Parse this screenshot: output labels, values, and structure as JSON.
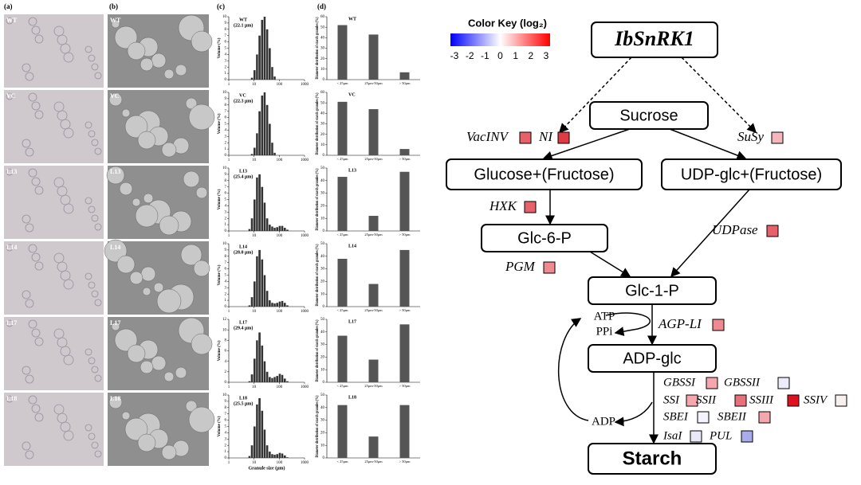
{
  "panel_labels": [
    "(a)",
    "(b)",
    "(c)",
    "(d)"
  ],
  "micrographs": {
    "rows": [
      "WT",
      "VC",
      "L13",
      "L14",
      "L17",
      "L18"
    ]
  },
  "chart_data": [
    {
      "type": "histogram",
      "title": "WT",
      "annotation": "(22.1 μm)",
      "ylabel": "Volume (%)",
      "xscale": "log",
      "xlim": [
        1,
        1000
      ],
      "xticks": [
        1,
        10,
        100,
        1000
      ],
      "ylim": [
        0,
        10
      ],
      "yticks": [
        0,
        1,
        2,
        3,
        4,
        5,
        6,
        7,
        8,
        9,
        10
      ],
      "color": "#333333",
      "bins": [
        3,
        3.8,
        4.8,
        6,
        7.5,
        9.5,
        12,
        15,
        19,
        24,
        30,
        38,
        48,
        60,
        75,
        95,
        120,
        150,
        190,
        240,
        300
      ],
      "values": [
        0,
        0,
        0,
        0,
        0.3,
        1.5,
        4,
        7,
        9.5,
        10,
        8,
        5,
        2,
        0.5,
        0,
        0,
        0,
        0,
        0,
        0
      ]
    },
    {
      "type": "histogram",
      "title": "VC",
      "annotation": "(22.3 μm)",
      "ylabel": "Volume (%)",
      "xscale": "log",
      "xlim": [
        1,
        1000
      ],
      "xticks": [
        1,
        10,
        100,
        1000
      ],
      "ylim": [
        0,
        10
      ],
      "yticks": [
        0,
        1,
        2,
        3,
        4,
        5,
        6,
        7,
        8,
        9,
        10
      ],
      "color": "#333333",
      "bins": [
        3,
        3.8,
        4.8,
        6,
        7.5,
        9.5,
        12,
        15,
        19,
        24,
        30,
        38,
        48,
        60,
        75,
        95,
        120,
        150,
        190,
        240,
        300
      ],
      "values": [
        0,
        0,
        0,
        0,
        0.2,
        1.2,
        3.5,
        7,
        9.5,
        10,
        8,
        5,
        2,
        0.4,
        0,
        0,
        0,
        0,
        0,
        0
      ]
    },
    {
      "type": "histogram",
      "title": "L13",
      "annotation": "(25.4 μm)",
      "ylabel": "Volume (%)",
      "xscale": "log",
      "xlim": [
        1,
        1000
      ],
      "xticks": [
        1,
        10,
        100,
        1000
      ],
      "ylim": [
        0,
        10
      ],
      "yticks": [
        0,
        1,
        2,
        3,
        4,
        5,
        6,
        7,
        8,
        9,
        10
      ],
      "color": "#333333",
      "bins": [
        3,
        3.8,
        4.8,
        6,
        7.5,
        9.5,
        12,
        15,
        19,
        24,
        30,
        38,
        48,
        60,
        75,
        95,
        120,
        150,
        190,
        240,
        300
      ],
      "values": [
        0,
        0,
        0,
        0.3,
        2,
        5,
        8.5,
        9,
        7,
        4.5,
        2,
        1,
        0.7,
        0.5,
        0.6,
        0.8,
        0.8,
        0.5,
        0.2,
        0
      ]
    },
    {
      "type": "histogram",
      "title": "L14",
      "annotation": "(28.0 μm)",
      "ylabel": "Volume (%)",
      "xscale": "log",
      "xlim": [
        1,
        1000
      ],
      "xticks": [
        1,
        10,
        100,
        1000
      ],
      "ylim": [
        0,
        10
      ],
      "yticks": [
        0,
        1,
        2,
        3,
        4,
        5,
        6,
        7,
        8,
        9,
        10
      ],
      "color": "#333333",
      "bins": [
        3,
        3.8,
        4.8,
        6,
        7.5,
        9.5,
        12,
        15,
        19,
        24,
        30,
        38,
        48,
        60,
        75,
        95,
        120,
        150,
        190,
        240,
        300
      ],
      "values": [
        0,
        0,
        0,
        0.2,
        1.5,
        4,
        8,
        9,
        7.5,
        5,
        2.5,
        1,
        0.6,
        0.5,
        0.6,
        0.8,
        0.9,
        0.6,
        0.2,
        0
      ]
    },
    {
      "type": "histogram",
      "title": "L17",
      "annotation": "(29.4 μm)",
      "ylabel": "Volume (%)",
      "xscale": "log",
      "xlim": [
        1,
        1000
      ],
      "xticks": [
        1,
        10,
        100,
        1000
      ],
      "ylim": [
        0,
        12
      ],
      "yticks": [
        0,
        2,
        4,
        6,
        8,
        10,
        12
      ],
      "color": "#333333",
      "bins": [
        3,
        3.8,
        4.8,
        6,
        7.5,
        9.5,
        12,
        15,
        19,
        24,
        30,
        38,
        48,
        60,
        75,
        95,
        120,
        150,
        190,
        240,
        300
      ],
      "values": [
        0,
        0,
        0,
        0.2,
        1.5,
        4.5,
        8,
        9.5,
        7,
        4,
        2,
        1,
        0.8,
        1,
        1.2,
        1.6,
        1.4,
        0.7,
        0.2,
        0
      ]
    },
    {
      "type": "histogram",
      "title": "L18",
      "annotation": "(25.5 μm)",
      "ylabel": "Volume (%)",
      "xlabel": "Granule size (μm)",
      "xscale": "log",
      "xlim": [
        1,
        1000
      ],
      "xticks": [
        1,
        10,
        100,
        1000
      ],
      "ylim": [
        0,
        10
      ],
      "yticks": [
        0,
        1,
        2,
        3,
        4,
        5,
        6,
        7,
        8,
        9,
        10
      ],
      "color": "#333333",
      "bins": [
        3,
        3.8,
        4.8,
        6,
        7.5,
        9.5,
        12,
        15,
        19,
        24,
        30,
        38,
        48,
        60,
        75,
        95,
        120,
        150,
        190,
        240,
        300
      ],
      "values": [
        0,
        0,
        0,
        0.3,
        2,
        5,
        8.5,
        9.5,
        7.5,
        4.5,
        2,
        1,
        0.6,
        0.5,
        0.6,
        0.8,
        0.7,
        0.4,
        0.1,
        0
      ]
    },
    {
      "type": "bar",
      "title": "WT",
      "ylabel": "Diameter distribution of starch granules (%)",
      "categories": [
        "< 25μm",
        "25μm-50μm",
        "> 50μm"
      ],
      "values": [
        52,
        43,
        7
      ],
      "ylim": [
        0,
        60
      ],
      "yticks": [
        0,
        10,
        20,
        30,
        40,
        50,
        60
      ],
      "color": "#555555"
    },
    {
      "type": "bar",
      "title": "VC",
      "ylabel": "Diameter distribution of starch granules (%)",
      "categories": [
        "< 25μm",
        "25μm-50μm",
        "> 50μm"
      ],
      "values": [
        51,
        44,
        6
      ],
      "ylim": [
        0,
        60
      ],
      "yticks": [
        0,
        10,
        20,
        30,
        40,
        50,
        60
      ],
      "color": "#555555"
    },
    {
      "type": "bar",
      "title": "L13",
      "ylabel": "Diameter distribution of starch granules (%)",
      "categories": [
        "< 25μm",
        "25μm-50μm",
        "> 50μm"
      ],
      "values": [
        43,
        12,
        47
      ],
      "ylim": [
        0,
        50
      ],
      "yticks": [
        0,
        10,
        20,
        30,
        40,
        50
      ],
      "color": "#555555"
    },
    {
      "type": "bar",
      "title": "L14",
      "ylabel": "Diameter distribution of starch granules (%)",
      "categories": [
        "< 25μm",
        "25μm-50μm",
        "> 50μm"
      ],
      "values": [
        38,
        18,
        45
      ],
      "ylim": [
        0,
        50
      ],
      "yticks": [
        0,
        10,
        20,
        30,
        40,
        50
      ],
      "color": "#555555"
    },
    {
      "type": "bar",
      "title": "L17",
      "ylabel": "Diameter distribution of starch granules (%)",
      "categories": [
        "< 25μm",
        "25μm-50μm",
        "> 50μm"
      ],
      "values": [
        37,
        18,
        46
      ],
      "ylim": [
        0,
        50
      ],
      "yticks": [
        0,
        10,
        20,
        30,
        40,
        50
      ],
      "color": "#555555"
    },
    {
      "type": "bar",
      "title": "L18",
      "ylabel": "Diameter distribution of starch granules (%)",
      "categories": [
        "< 25μm",
        "25μm-50μm",
        "> 50μm"
      ],
      "values": [
        42,
        17,
        42
      ],
      "ylim": [
        0,
        50
      ],
      "yticks": [
        0,
        10,
        20,
        30,
        40,
        50
      ],
      "color": "#555555"
    }
  ],
  "diagram": {
    "color_key": {
      "title": "Color Key (log₂)",
      "ticks": [
        -3,
        -2,
        -1,
        0,
        1,
        2,
        3
      ],
      "colors": [
        "#0000ff",
        "#ffffff",
        "#ff0000"
      ]
    },
    "nodes": [
      "IbSnRK1",
      "Sucrose",
      "Glucose+(Fructose)",
      "UDP-glc+(Fructose)",
      "Glc-6-P",
      "Glc-1-P",
      "ADP-glc",
      "Starch"
    ],
    "metabolites": [
      "ATP",
      "PPi",
      "ADP"
    ],
    "genes": [
      {
        "label": "VacINV",
        "color": "#e8606a"
      },
      {
        "label": "NI",
        "color": "#e03a45"
      },
      {
        "label": "SuSy",
        "color": "#f4b8bc"
      },
      {
        "label": "HXK",
        "color": "#e8606a"
      },
      {
        "label": "UDPase",
        "color": "#e8606a"
      },
      {
        "label": "PGM",
        "color": "#ee8a90"
      },
      {
        "label": "AGP-LI",
        "color": "#ee8a90"
      },
      {
        "label": "GBSSI",
        "color": "#f4a8ae"
      },
      {
        "label": "GBSSII",
        "color": "#ececf8"
      },
      {
        "label": "SSI",
        "color": "#f4a8ae"
      },
      {
        "label": "SSII",
        "color": "#e8707a"
      },
      {
        "label": "SSIII",
        "color": "#e01020"
      },
      {
        "label": "SSIV",
        "color": "#f8f0f0"
      },
      {
        "label": "SBEI",
        "color": "#f4f4fc"
      },
      {
        "label": "SBEII",
        "color": "#f4a8ae"
      },
      {
        "label": "IsaI",
        "color": "#e8e8f8"
      },
      {
        "label": "PUL",
        "color": "#a8acec"
      }
    ]
  }
}
